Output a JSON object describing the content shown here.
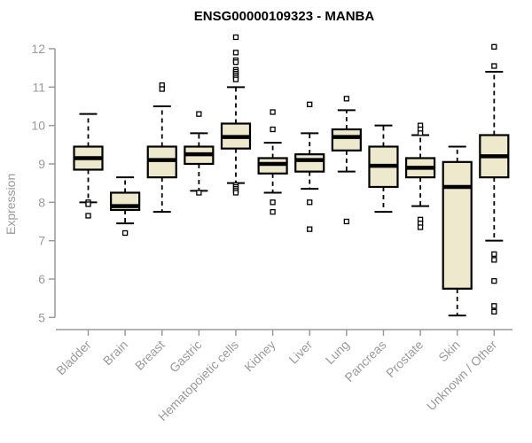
{
  "chart_data": {
    "type": "boxplot",
    "title": "ENSG00000109323 - MANBA",
    "xlabel": "",
    "ylabel": "Expression",
    "ylim": [
      5,
      12.4
    ],
    "yticks": [
      5,
      6,
      7,
      8,
      9,
      10,
      11,
      12
    ],
    "grid": false,
    "legend": "none",
    "categories": [
      "Bladder",
      "Brain",
      "Breast",
      "Gastric",
      "Hematopoietic cells",
      "Kidney",
      "Liver",
      "Lung",
      "Pancreas",
      "Prostate",
      "Skin",
      "Unknown / Other"
    ],
    "boxes": [
      {
        "category": "Bladder",
        "whisker_low": 8.0,
        "q1": 8.85,
        "median": 9.15,
        "q3": 9.45,
        "whisker_high": 10.3,
        "outliers": [
          8.0,
          7.95,
          7.65
        ]
      },
      {
        "category": "Brain",
        "whisker_low": 7.45,
        "q1": 7.8,
        "median": 7.9,
        "q3": 8.25,
        "whisker_high": 8.65,
        "outliers": [
          7.2
        ]
      },
      {
        "category": "Breast",
        "whisker_low": 7.75,
        "q1": 8.65,
        "median": 9.1,
        "q3": 9.45,
        "whisker_high": 10.5,
        "outliers": [
          11.05,
          10.95
        ]
      },
      {
        "category": "Gastric",
        "whisker_low": 8.3,
        "q1": 9.0,
        "median": 9.25,
        "q3": 9.45,
        "whisker_high": 9.8,
        "outliers": [
          10.3,
          8.25
        ]
      },
      {
        "category": "Hematopoietic cells",
        "whisker_low": 8.5,
        "q1": 9.4,
        "median": 9.7,
        "q3": 10.05,
        "whisker_high": 11.0,
        "outliers": [
          12.3,
          11.9,
          11.7,
          11.65,
          11.45,
          11.4,
          11.35,
          11.3,
          11.25,
          11.2,
          8.45,
          8.4,
          8.35,
          8.3,
          8.25
        ]
      },
      {
        "category": "Kidney",
        "whisker_low": 8.25,
        "q1": 8.75,
        "median": 9.0,
        "q3": 9.15,
        "whisker_high": 9.55,
        "outliers": [
          10.35,
          9.9,
          8.0,
          7.75
        ]
      },
      {
        "category": "Liver",
        "whisker_low": 8.35,
        "q1": 8.8,
        "median": 9.1,
        "q3": 9.25,
        "whisker_high": 9.8,
        "outliers": [
          10.55,
          8.0,
          7.3
        ]
      },
      {
        "category": "Lung",
        "whisker_low": 8.8,
        "q1": 9.35,
        "median": 9.7,
        "q3": 9.9,
        "whisker_high": 10.4,
        "outliers": [
          10.7,
          7.5
        ]
      },
      {
        "category": "Pancreas",
        "whisker_low": 7.75,
        "q1": 8.4,
        "median": 8.95,
        "q3": 9.45,
        "whisker_high": 10.0,
        "outliers": []
      },
      {
        "category": "Prostate",
        "whisker_low": 7.9,
        "q1": 8.65,
        "median": 8.9,
        "q3": 9.15,
        "whisker_high": 9.75,
        "outliers": [
          10.0,
          9.9,
          9.8,
          7.55,
          7.45,
          7.35
        ]
      },
      {
        "category": "Skin",
        "whisker_low": 5.05,
        "q1": 5.75,
        "median": 8.4,
        "q3": 9.05,
        "whisker_high": 9.45,
        "outliers": []
      },
      {
        "category": "Unknown / Other",
        "whisker_low": 7.0,
        "q1": 8.65,
        "median": 9.2,
        "q3": 9.75,
        "whisker_high": 11.4,
        "outliers": [
          12.05,
          11.55,
          6.65,
          6.5,
          5.95,
          5.3,
          5.15
        ]
      }
    ]
  },
  "style": {
    "background": "#ffffff",
    "box_fill": "#EEE8CD",
    "box_border": "#000000",
    "median_color": "#000000",
    "whisker_color": "#000000",
    "outlier_fill": "#ffffff",
    "axis_color": "#9A9A9A",
    "tick_label_color": "#9A9A9A",
    "title_color": "#000000"
  }
}
